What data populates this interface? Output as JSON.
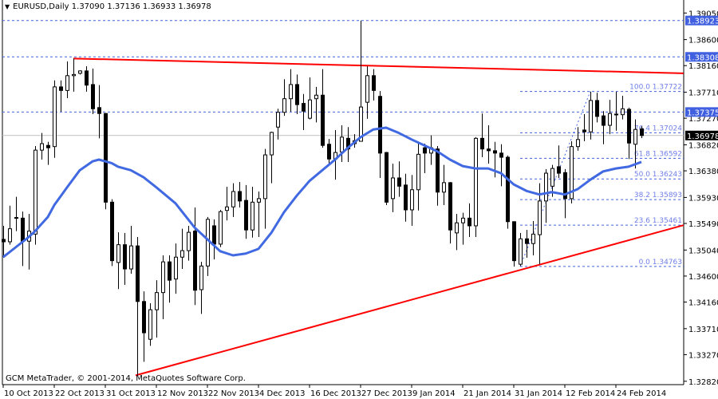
{
  "header": {
    "symbol": "EURUSD,Daily",
    "open": "1.37090",
    "high": "1.37136",
    "low": "1.36933",
    "close": "1.36978",
    "menu_icon": "triangle-down-icon"
  },
  "copyright": "GCM MetaTrader, © 2001-2014, MetaQuotes Software Corp.",
  "colors": {
    "resistance_line": "#ff0000",
    "support_line": "#ff0000",
    "moving_average": "#4169e1",
    "level_lines": "#4060e0",
    "fib_text": "#6f7fe8",
    "current_price_bg": "#000000"
  },
  "chart_data": {
    "type": "candlestick",
    "symbol": "EURUSD",
    "timeframe": "Daily",
    "ylim": [
      1.3282,
      1.3927
    ],
    "y_ticks": [
      "1.39050",
      "1.38600",
      "1.38160",
      "1.37710",
      "1.37270",
      "1.36820",
      "1.36380",
      "1.35930",
      "1.35490",
      "1.35040",
      "1.34600",
      "1.34160",
      "1.33710",
      "1.33270",
      "1.32820"
    ],
    "x_ticks": [
      {
        "bar": 0,
        "label": "10 Oct 2013"
      },
      {
        "bar": 8,
        "label": "22 Oct 2013"
      },
      {
        "bar": 16,
        "label": "31 Oct 2013"
      },
      {
        "bar": 24,
        "label": "12 Nov 2013"
      },
      {
        "bar": 32,
        "label": "22 Nov 2013"
      },
      {
        "bar": 40,
        "label": "4 Dec 2013"
      },
      {
        "bar": 48,
        "label": "16 Dec 2013"
      },
      {
        "bar": 56,
        "label": "27 Dec 2013"
      },
      {
        "bar": 64,
        "label": "9 Jan 2014"
      },
      {
        "bar": 72,
        "label": "21 Jan 2014"
      },
      {
        "bar": 80,
        "label": "31 Jan 2014"
      },
      {
        "bar": 88,
        "label": "12 Feb 2014"
      },
      {
        "bar": 96,
        "label": "24 Feb 2014"
      }
    ],
    "candles_ohlc": [
      [
        1.3522,
        1.3545,
        1.3491,
        1.3518
      ],
      [
        1.3518,
        1.3579,
        1.3513,
        1.354
      ],
      [
        1.3558,
        1.3594,
        1.3536,
        1.3559
      ],
      [
        1.3558,
        1.3569,
        1.3477,
        1.3519
      ],
      [
        1.3519,
        1.3565,
        1.3471,
        1.3536
      ],
      [
        1.3531,
        1.368,
        1.3513,
        1.3673
      ],
      [
        1.3673,
        1.3702,
        1.3657,
        1.3684
      ],
      [
        1.3681,
        1.3687,
        1.3648,
        1.3677
      ],
      [
        1.3679,
        1.3791,
        1.366,
        1.378
      ],
      [
        1.378,
        1.3791,
        1.3738,
        1.3774
      ],
      [
        1.3774,
        1.3823,
        1.3761,
        1.3799
      ],
      [
        1.3799,
        1.3828,
        1.3772,
        1.3801
      ],
      [
        1.3803,
        1.3808,
        1.3801,
        1.3807
      ],
      [
        1.3807,
        1.3815,
        1.3772,
        1.3783
      ],
      [
        1.3784,
        1.3811,
        1.3734,
        1.3743
      ],
      [
        1.3745,
        1.3783,
        1.3693,
        1.3735
      ],
      [
        1.3735,
        1.3736,
        1.3573,
        1.3585
      ],
      [
        1.3585,
        1.359,
        1.3477,
        1.3486
      ],
      [
        1.3483,
        1.3534,
        1.3438,
        1.3513
      ],
      [
        1.3513,
        1.3533,
        1.3445,
        1.3472
      ],
      [
        1.3472,
        1.3545,
        1.3464,
        1.3511
      ],
      [
        1.3511,
        1.3526,
        1.3293,
        1.3417
      ],
      [
        1.3417,
        1.3434,
        1.3315,
        1.3364
      ],
      [
        1.3353,
        1.3414,
        1.3342,
        1.3403
      ],
      [
        1.3403,
        1.3453,
        1.3356,
        1.3432
      ],
      [
        1.3432,
        1.3495,
        1.3387,
        1.3484
      ],
      [
        1.3484,
        1.3495,
        1.3415,
        1.3453
      ],
      [
        1.3455,
        1.3515,
        1.343,
        1.3492
      ],
      [
        1.3492,
        1.354,
        1.3472,
        1.3503
      ],
      [
        1.3503,
        1.3545,
        1.3486,
        1.3534
      ],
      [
        1.3536,
        1.3576,
        1.3411,
        1.3436
      ],
      [
        1.3437,
        1.3484,
        1.3396,
        1.3477
      ],
      [
        1.3477,
        1.356,
        1.346,
        1.3556
      ],
      [
        1.3545,
        1.3556,
        1.3488,
        1.3514
      ],
      [
        1.3514,
        1.3572,
        1.3509,
        1.3569
      ],
      [
        1.3571,
        1.3611,
        1.3554,
        1.3577
      ],
      [
        1.3577,
        1.3617,
        1.356,
        1.3603
      ],
      [
        1.3603,
        1.3619,
        1.3576,
        1.3587
      ],
      [
        1.3588,
        1.3614,
        1.3523,
        1.3538
      ],
      [
        1.3538,
        1.3611,
        1.3525,
        1.3585
      ],
      [
        1.3585,
        1.3603,
        1.3526,
        1.3591
      ],
      [
        1.3591,
        1.3675,
        1.354,
        1.3665
      ],
      [
        1.3665,
        1.3704,
        1.3617,
        1.3703
      ],
      [
        1.3712,
        1.3743,
        1.3691,
        1.3737
      ],
      [
        1.3737,
        1.3793,
        1.3731,
        1.376
      ],
      [
        1.376,
        1.381,
        1.3738,
        1.3784
      ],
      [
        1.3784,
        1.3801,
        1.3734,
        1.375
      ],
      [
        1.3752,
        1.3768,
        1.3707,
        1.3739
      ],
      [
        1.3727,
        1.3796,
        1.3725,
        1.3758
      ],
      [
        1.376,
        1.378,
        1.372,
        1.3766
      ],
      [
        1.3766,
        1.381,
        1.3677,
        1.3681
      ],
      [
        1.3683,
        1.3692,
        1.365,
        1.3658
      ],
      [
        1.3658,
        1.3707,
        1.3623,
        1.3669
      ],
      [
        1.367,
        1.3715,
        1.3653,
        1.3695
      ],
      [
        1.3693,
        1.3712,
        1.3653,
        1.3675
      ],
      [
        1.3684,
        1.37,
        1.3677,
        1.3689
      ],
      [
        1.3688,
        1.3892,
        1.3688,
        1.3746
      ],
      [
        1.3754,
        1.3815,
        1.3726,
        1.3799
      ],
      [
        1.3799,
        1.381,
        1.3757,
        1.3774
      ],
      [
        1.3764,
        1.3773,
        1.3626,
        1.3668
      ],
      [
        1.3669,
        1.367,
        1.358,
        1.3585
      ],
      [
        1.3591,
        1.365,
        1.3568,
        1.3626
      ],
      [
        1.3626,
        1.3654,
        1.3594,
        1.3612
      ],
      [
        1.3614,
        1.3633,
        1.3552,
        1.3572
      ],
      [
        1.3572,
        1.3631,
        1.3545,
        1.3606
      ],
      [
        1.3606,
        1.3685,
        1.3571,
        1.3666
      ],
      [
        1.3677,
        1.3684,
        1.3634,
        1.3668
      ],
      [
        1.3668,
        1.3698,
        1.3648,
        1.3677
      ],
      [
        1.3675,
        1.368,
        1.3579,
        1.3602
      ],
      [
        1.3602,
        1.3648,
        1.358,
        1.3618
      ],
      [
        1.3618,
        1.3619,
        1.3515,
        1.3538
      ],
      [
        1.3533,
        1.3565,
        1.3504,
        1.355
      ],
      [
        1.355,
        1.3567,
        1.3513,
        1.3558
      ],
      [
        1.3558,
        1.3583,
        1.3526,
        1.3545
      ],
      [
        1.3545,
        1.3695,
        1.3526,
        1.3693
      ],
      [
        1.3693,
        1.3735,
        1.3661,
        1.3675
      ],
      [
        1.3675,
        1.3715,
        1.365,
        1.3672
      ],
      [
        1.3672,
        1.3687,
        1.3627,
        1.3668
      ],
      [
        1.3668,
        1.3683,
        1.3612,
        1.3661
      ],
      [
        1.3661,
        1.3664,
        1.354,
        1.3552
      ],
      [
        1.3552,
        1.3552,
        1.3476,
        1.3486
      ],
      [
        1.348,
        1.3533,
        1.3477,
        1.3523
      ],
      [
        1.3523,
        1.3538,
        1.3491,
        1.3515
      ],
      [
        1.3515,
        1.3553,
        1.3495,
        1.3531
      ],
      [
        1.353,
        1.3617,
        1.348,
        1.3587
      ],
      [
        1.3587,
        1.3641,
        1.355,
        1.3634
      ],
      [
        1.3612,
        1.3648,
        1.3594,
        1.3642
      ],
      [
        1.3645,
        1.3681,
        1.3626,
        1.3634
      ],
      [
        1.3635,
        1.3641,
        1.3558,
        1.3591
      ],
      [
        1.3591,
        1.3688,
        1.3583,
        1.3679
      ],
      [
        1.3679,
        1.3712,
        1.3672,
        1.3691
      ],
      [
        1.3707,
        1.3734,
        1.3688,
        1.3704
      ],
      [
        1.3704,
        1.3772,
        1.3691,
        1.3757
      ],
      [
        1.3757,
        1.377,
        1.372,
        1.373
      ],
      [
        1.3731,
        1.3739,
        1.3683,
        1.3715
      ],
      [
        1.3715,
        1.3758,
        1.37,
        1.3735
      ],
      [
        1.3733,
        1.3772,
        1.3706,
        1.3734
      ],
      [
        1.3733,
        1.3765,
        1.3725,
        1.3743
      ],
      [
        1.3742,
        1.3745,
        1.3658,
        1.3685
      ],
      [
        1.3683,
        1.3725,
        1.3642,
        1.3708
      ],
      [
        1.3709,
        1.37136,
        1.36933,
        1.36978
      ]
    ],
    "moving_average": [
      [
        0,
        1.3492
      ],
      [
        2,
        1.3509
      ],
      [
        4,
        1.3526
      ],
      [
        5,
        1.3536
      ],
      [
        7,
        1.356
      ],
      [
        8,
        1.358
      ],
      [
        10,
        1.361
      ],
      [
        12,
        1.3639
      ],
      [
        14,
        1.3654
      ],
      [
        15,
        1.3657
      ],
      [
        16,
        1.3654
      ],
      [
        17,
        1.3651
      ],
      [
        18,
        1.3645
      ],
      [
        20,
        1.3639
      ],
      [
        22,
        1.3627
      ],
      [
        24,
        1.361
      ],
      [
        27,
        1.3583
      ],
      [
        30,
        1.3542
      ],
      [
        32,
        1.3522
      ],
      [
        34,
        1.3502
      ],
      [
        36,
        1.3495
      ],
      [
        38,
        1.3498
      ],
      [
        40,
        1.3506
      ],
      [
        42,
        1.3533
      ],
      [
        44,
        1.3568
      ],
      [
        46,
        1.3596
      ],
      [
        48,
        1.3621
      ],
      [
        50,
        1.3639
      ],
      [
        52,
        1.3657
      ],
      [
        54,
        1.3677
      ],
      [
        56,
        1.3695
      ],
      [
        58,
        1.3708
      ],
      [
        60,
        1.3711
      ],
      [
        62,
        1.3702
      ],
      [
        64,
        1.3691
      ],
      [
        66,
        1.3681
      ],
      [
        68,
        1.3671
      ],
      [
        70,
        1.3657
      ],
      [
        72,
        1.3646
      ],
      [
        74,
        1.3642
      ],
      [
        76,
        1.3642
      ],
      [
        78,
        1.3634
      ],
      [
        80,
        1.3615
      ],
      [
        82,
        1.3604
      ],
      [
        84,
        1.3598
      ],
      [
        86,
        1.3602
      ],
      [
        88,
        1.3598
      ],
      [
        90,
        1.3607
      ],
      [
        92,
        1.3623
      ],
      [
        94,
        1.3637
      ],
      [
        96,
        1.3642
      ],
      [
        98,
        1.3645
      ],
      [
        100,
        1.3653
      ]
    ],
    "trendlines": [
      {
        "id": "resistance",
        "points": [
          [
            11,
            1.3828
          ],
          [
            106.6,
            1.3803
          ]
        ]
      },
      {
        "id": "support",
        "points": [
          [
            20.75,
            1.3292
          ],
          [
            106.6,
            1.3546
          ]
        ]
      }
    ],
    "horizontal_levels": [
      "1.38923",
      "1.38308",
      "1.37375"
    ],
    "current_price": "1.36978",
    "fibonacci": {
      "start_bar": 81,
      "trend": [
        [
          81,
          1.34763
        ],
        [
          92,
          1.37722
        ]
      ],
      "levels": [
        {
          "ratio": "100.0",
          "price": "1.37722"
        },
        {
          "ratio": "76.4",
          "price": "1.37024"
        },
        {
          "ratio": "61.8",
          "price": "1.36592"
        },
        {
          "ratio": "50.0",
          "price": "1.36243"
        },
        {
          "ratio": "38.2",
          "price": "1.35893"
        },
        {
          "ratio": "23.6",
          "price": "1.35461"
        },
        {
          "ratio": "0.0",
          "price": "1.34763"
        }
      ]
    }
  }
}
